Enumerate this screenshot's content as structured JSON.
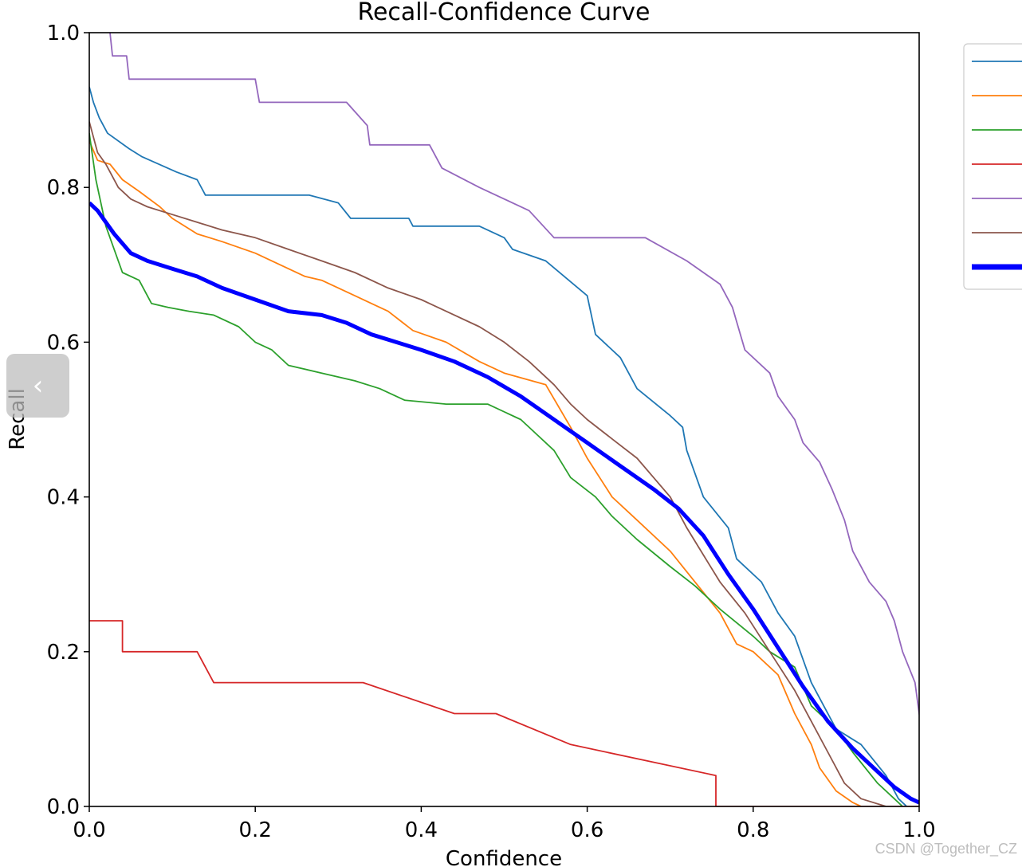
{
  "chart_data": {
    "type": "line",
    "title": "Recall-Confidence Curve",
    "xlabel": "Confidence",
    "ylabel": "Recall",
    "xlim": [
      0,
      1
    ],
    "ylim": [
      0,
      1
    ],
    "xticks": [
      "0.0",
      "0.2",
      "0.4",
      "0.6",
      "0.8",
      "1.0"
    ],
    "yticks": [
      "0.0",
      "0.2",
      "0.4",
      "0.6",
      "0.8",
      "1.0"
    ],
    "grid": false,
    "legend_position": "upper-right (outside)",
    "series": [
      {
        "color": "#1f77b4",
        "width": 1.8,
        "points": [
          [
            0.0,
            0.93
          ],
          [
            0.005,
            0.91
          ],
          [
            0.012,
            0.89
          ],
          [
            0.022,
            0.87
          ],
          [
            0.048,
            0.85
          ],
          [
            0.063,
            0.84
          ],
          [
            0.105,
            0.82
          ],
          [
            0.13,
            0.81
          ],
          [
            0.14,
            0.79
          ],
          [
            0.265,
            0.79
          ],
          [
            0.3,
            0.78
          ],
          [
            0.315,
            0.76
          ],
          [
            0.385,
            0.76
          ],
          [
            0.39,
            0.75
          ],
          [
            0.47,
            0.75
          ],
          [
            0.5,
            0.735
          ],
          [
            0.51,
            0.72
          ],
          [
            0.55,
            0.705
          ],
          [
            0.6,
            0.66
          ],
          [
            0.61,
            0.61
          ],
          [
            0.64,
            0.58
          ],
          [
            0.66,
            0.54
          ],
          [
            0.7,
            0.505
          ],
          [
            0.715,
            0.49
          ],
          [
            0.72,
            0.46
          ],
          [
            0.74,
            0.4
          ],
          [
            0.77,
            0.36
          ],
          [
            0.78,
            0.32
          ],
          [
            0.81,
            0.29
          ],
          [
            0.83,
            0.25
          ],
          [
            0.85,
            0.22
          ],
          [
            0.87,
            0.16
          ],
          [
            0.9,
            0.1
          ],
          [
            0.93,
            0.08
          ],
          [
            0.96,
            0.04
          ],
          [
            0.975,
            0.01
          ],
          [
            0.985,
            0.0
          ]
        ]
      },
      {
        "color": "#ff7f0e",
        "width": 1.8,
        "points": [
          [
            0.0,
            0.86
          ],
          [
            0.01,
            0.835
          ],
          [
            0.025,
            0.83
          ],
          [
            0.04,
            0.81
          ],
          [
            0.06,
            0.795
          ],
          [
            0.085,
            0.775
          ],
          [
            0.1,
            0.76
          ],
          [
            0.13,
            0.74
          ],
          [
            0.16,
            0.73
          ],
          [
            0.2,
            0.715
          ],
          [
            0.23,
            0.7
          ],
          [
            0.26,
            0.685
          ],
          [
            0.28,
            0.68
          ],
          [
            0.32,
            0.66
          ],
          [
            0.36,
            0.64
          ],
          [
            0.39,
            0.615
          ],
          [
            0.43,
            0.6
          ],
          [
            0.47,
            0.575
          ],
          [
            0.5,
            0.56
          ],
          [
            0.55,
            0.545
          ],
          [
            0.58,
            0.49
          ],
          [
            0.6,
            0.45
          ],
          [
            0.63,
            0.4
          ],
          [
            0.66,
            0.37
          ],
          [
            0.7,
            0.33
          ],
          [
            0.73,
            0.29
          ],
          [
            0.76,
            0.25
          ],
          [
            0.78,
            0.21
          ],
          [
            0.8,
            0.2
          ],
          [
            0.83,
            0.17
          ],
          [
            0.85,
            0.12
          ],
          [
            0.87,
            0.08
          ],
          [
            0.88,
            0.05
          ],
          [
            0.9,
            0.02
          ],
          [
            0.92,
            0.005
          ],
          [
            0.93,
            0.0
          ]
        ]
      },
      {
        "color": "#2ca02c",
        "width": 1.8,
        "points": [
          [
            0.0,
            0.87
          ],
          [
            0.008,
            0.81
          ],
          [
            0.02,
            0.75
          ],
          [
            0.04,
            0.69
          ],
          [
            0.06,
            0.68
          ],
          [
            0.075,
            0.65
          ],
          [
            0.095,
            0.645
          ],
          [
            0.12,
            0.64
          ],
          [
            0.15,
            0.635
          ],
          [
            0.18,
            0.62
          ],
          [
            0.2,
            0.6
          ],
          [
            0.22,
            0.59
          ],
          [
            0.24,
            0.57
          ],
          [
            0.28,
            0.56
          ],
          [
            0.32,
            0.55
          ],
          [
            0.35,
            0.54
          ],
          [
            0.38,
            0.525
          ],
          [
            0.43,
            0.52
          ],
          [
            0.48,
            0.52
          ],
          [
            0.52,
            0.5
          ],
          [
            0.54,
            0.48
          ],
          [
            0.56,
            0.46
          ],
          [
            0.58,
            0.425
          ],
          [
            0.61,
            0.4
          ],
          [
            0.63,
            0.375
          ],
          [
            0.66,
            0.345
          ],
          [
            0.7,
            0.31
          ],
          [
            0.73,
            0.285
          ],
          [
            0.76,
            0.255
          ],
          [
            0.8,
            0.22
          ],
          [
            0.82,
            0.2
          ],
          [
            0.85,
            0.18
          ],
          [
            0.87,
            0.13
          ],
          [
            0.9,
            0.1
          ],
          [
            0.92,
            0.07
          ],
          [
            0.95,
            0.03
          ],
          [
            0.97,
            0.01
          ],
          [
            0.98,
            0.0
          ]
        ]
      },
      {
        "color": "#d62728",
        "width": 1.8,
        "points": [
          [
            0.0,
            0.24
          ],
          [
            0.04,
            0.24
          ],
          [
            0.04,
            0.2
          ],
          [
            0.13,
            0.2
          ],
          [
            0.15,
            0.16
          ],
          [
            0.33,
            0.16
          ],
          [
            0.44,
            0.12
          ],
          [
            0.49,
            0.12
          ],
          [
            0.58,
            0.08
          ],
          [
            0.755,
            0.04
          ],
          [
            0.755,
            0.0
          ],
          [
            1.0,
            0.0
          ]
        ]
      },
      {
        "color": "#9467bd",
        "width": 1.8,
        "points": [
          [
            0.025,
            1.0
          ],
          [
            0.028,
            0.97
          ],
          [
            0.045,
            0.97
          ],
          [
            0.048,
            0.94
          ],
          [
            0.2,
            0.94
          ],
          [
            0.205,
            0.91
          ],
          [
            0.31,
            0.91
          ],
          [
            0.335,
            0.88
          ],
          [
            0.338,
            0.855
          ],
          [
            0.41,
            0.855
          ],
          [
            0.425,
            0.825
          ],
          [
            0.47,
            0.8
          ],
          [
            0.53,
            0.77
          ],
          [
            0.56,
            0.735
          ],
          [
            0.67,
            0.735
          ],
          [
            0.72,
            0.705
          ],
          [
            0.76,
            0.675
          ],
          [
            0.775,
            0.645
          ],
          [
            0.79,
            0.59
          ],
          [
            0.82,
            0.56
          ],
          [
            0.83,
            0.53
          ],
          [
            0.85,
            0.5
          ],
          [
            0.86,
            0.47
          ],
          [
            0.88,
            0.445
          ],
          [
            0.895,
            0.41
          ],
          [
            0.91,
            0.37
          ],
          [
            0.92,
            0.33
          ],
          [
            0.94,
            0.29
          ],
          [
            0.96,
            0.265
          ],
          [
            0.97,
            0.24
          ],
          [
            0.98,
            0.2
          ],
          [
            0.995,
            0.16
          ],
          [
            1.0,
            0.12
          ],
          [
            1.01,
            0.06
          ],
          [
            1.02,
            0.03
          ],
          [
            1.025,
            0.0
          ]
        ]
      },
      {
        "color": "#8c564b",
        "width": 1.8,
        "points": [
          [
            0.0,
            0.885
          ],
          [
            0.01,
            0.845
          ],
          [
            0.02,
            0.83
          ],
          [
            0.035,
            0.8
          ],
          [
            0.05,
            0.785
          ],
          [
            0.07,
            0.775
          ],
          [
            0.1,
            0.765
          ],
          [
            0.13,
            0.755
          ],
          [
            0.16,
            0.745
          ],
          [
            0.2,
            0.735
          ],
          [
            0.24,
            0.72
          ],
          [
            0.28,
            0.705
          ],
          [
            0.32,
            0.69
          ],
          [
            0.36,
            0.67
          ],
          [
            0.4,
            0.655
          ],
          [
            0.43,
            0.64
          ],
          [
            0.47,
            0.62
          ],
          [
            0.5,
            0.6
          ],
          [
            0.53,
            0.575
          ],
          [
            0.56,
            0.545
          ],
          [
            0.58,
            0.52
          ],
          [
            0.6,
            0.5
          ],
          [
            0.63,
            0.475
          ],
          [
            0.66,
            0.45
          ],
          [
            0.68,
            0.425
          ],
          [
            0.7,
            0.4
          ],
          [
            0.72,
            0.36
          ],
          [
            0.74,
            0.325
          ],
          [
            0.76,
            0.29
          ],
          [
            0.79,
            0.25
          ],
          [
            0.82,
            0.2
          ],
          [
            0.85,
            0.15
          ],
          [
            0.87,
            0.11
          ],
          [
            0.89,
            0.07
          ],
          [
            0.91,
            0.03
          ],
          [
            0.93,
            0.01
          ],
          [
            0.96,
            0.0
          ]
        ]
      },
      {
        "color": "#0000ff",
        "width": 5,
        "points": [
          [
            0.0,
            0.78
          ],
          [
            0.01,
            0.77
          ],
          [
            0.02,
            0.755
          ],
          [
            0.03,
            0.74
          ],
          [
            0.05,
            0.715
          ],
          [
            0.07,
            0.705
          ],
          [
            0.1,
            0.695
          ],
          [
            0.13,
            0.685
          ],
          [
            0.16,
            0.67
          ],
          [
            0.2,
            0.655
          ],
          [
            0.24,
            0.64
          ],
          [
            0.28,
            0.635
          ],
          [
            0.31,
            0.625
          ],
          [
            0.34,
            0.61
          ],
          [
            0.37,
            0.6
          ],
          [
            0.4,
            0.59
          ],
          [
            0.44,
            0.575
          ],
          [
            0.48,
            0.555
          ],
          [
            0.52,
            0.53
          ],
          [
            0.56,
            0.5
          ],
          [
            0.6,
            0.47
          ],
          [
            0.64,
            0.44
          ],
          [
            0.68,
            0.41
          ],
          [
            0.71,
            0.385
          ],
          [
            0.74,
            0.35
          ],
          [
            0.77,
            0.3
          ],
          [
            0.8,
            0.255
          ],
          [
            0.83,
            0.205
          ],
          [
            0.86,
            0.155
          ],
          [
            0.89,
            0.11
          ],
          [
            0.92,
            0.075
          ],
          [
            0.95,
            0.045
          ],
          [
            0.97,
            0.025
          ],
          [
            0.99,
            0.01
          ],
          [
            1.0,
            0.005
          ]
        ]
      }
    ]
  },
  "ui": {
    "nav_arrow_glyph": "‹",
    "watermark": "CSDN @Together_CZ"
  }
}
